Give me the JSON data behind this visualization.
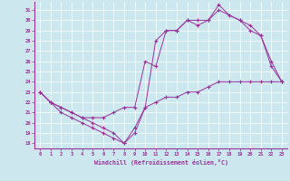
{
  "xlabel": "Windchill (Refroidissement éolien,°C)",
  "xlim": [
    -0.5,
    23.5
  ],
  "ylim": [
    17.5,
    31.8
  ],
  "yticks": [
    18,
    19,
    20,
    21,
    22,
    23,
    24,
    25,
    26,
    27,
    28,
    29,
    30,
    31
  ],
  "xticks": [
    0,
    1,
    2,
    3,
    4,
    5,
    6,
    7,
    8,
    9,
    10,
    11,
    12,
    13,
    14,
    15,
    16,
    17,
    18,
    19,
    20,
    21,
    22,
    23
  ],
  "bg_color": "#cce8ee",
  "line_color": "#993399",
  "line1_x": [
    0,
    1,
    2,
    3,
    4,
    5,
    6,
    7,
    8,
    9,
    10,
    11,
    12,
    13,
    14,
    15,
    16,
    17,
    18,
    19,
    20,
    21,
    22,
    23
  ],
  "line1_y": [
    23,
    22,
    21.5,
    21,
    20.5,
    20,
    19.5,
    19,
    18,
    19.5,
    21.5,
    22,
    22.5,
    22.5,
    23,
    23,
    23.5,
    24,
    24,
    24,
    24,
    24,
    24,
    24
  ],
  "line2_x": [
    0,
    1,
    2,
    3,
    4,
    5,
    6,
    7,
    8,
    9,
    10,
    11,
    12,
    13,
    14,
    15,
    16,
    17,
    18,
    19,
    20,
    21,
    22,
    23
  ],
  "line2_y": [
    23,
    22,
    21.5,
    21,
    20.5,
    20.5,
    20.5,
    21,
    21.5,
    21.5,
    26,
    25.5,
    29,
    29,
    30,
    30,
    30,
    31,
    30.5,
    30,
    29,
    28.5,
    26,
    24
  ],
  "line3_x": [
    0,
    1,
    2,
    3,
    4,
    5,
    6,
    7,
    8,
    9,
    10,
    11,
    12,
    13,
    14,
    15,
    16,
    17,
    18,
    19,
    20,
    21,
    22,
    23
  ],
  "line3_y": [
    23,
    22,
    21,
    20.5,
    20,
    19.5,
    19,
    18.5,
    18,
    19,
    21.5,
    28,
    29,
    29,
    30,
    29.5,
    30,
    31.5,
    30.5,
    30,
    29.5,
    28.5,
    25.5,
    24
  ]
}
